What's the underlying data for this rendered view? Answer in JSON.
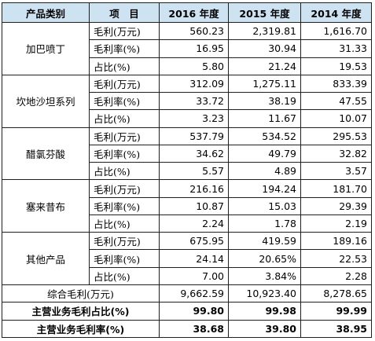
{
  "header": {
    "category": "产品类别",
    "item": "项　目",
    "year2016": "2016 年度",
    "year2015": "2015 年度",
    "year2014": "2014 年度"
  },
  "metric_labels": [
    "毛利(万元)",
    "毛利率(%)",
    "占比(%)"
  ],
  "groups": [
    {
      "name": "加巴喷丁",
      "rows": [
        [
          "560.23",
          "2,319.81",
          "1,616.70"
        ],
        [
          "16.95",
          "30.94",
          "31.33"
        ],
        [
          "5.80",
          "21.24",
          "19.53"
        ]
      ]
    },
    {
      "name": "坎地沙坦系列",
      "rows": [
        [
          "312.09",
          "1,275.11",
          "833.39"
        ],
        [
          "33.72",
          "38.19",
          "47.55"
        ],
        [
          "3.23",
          "11.67",
          "10.07"
        ]
      ]
    },
    {
      "name": "醋氯芬酸",
      "rows": [
        [
          "537.79",
          "534.52",
          "295.53"
        ],
        [
          "34.62",
          "49.79",
          "32.82"
        ],
        [
          "5.57",
          "4.89",
          "3.57"
        ]
      ]
    },
    {
      "name": "塞来昔布",
      "rows": [
        [
          "216.16",
          "194.24",
          "181.70"
        ],
        [
          "10.87",
          "15.03",
          "29.39"
        ],
        [
          "2.24",
          "1.78",
          "2.19"
        ]
      ]
    },
    {
      "name": "其他产品",
      "rows": [
        [
          "675.95",
          "419.59",
          "189.16"
        ],
        [
          "24.14",
          "20.65%",
          "22.53"
        ],
        [
          "7.00",
          "3.84%",
          "2.28"
        ]
      ]
    }
  ],
  "summary": [
    {
      "label": "综合毛利(万元)",
      "values": [
        "9,662.59",
        "10,923.40",
        "8,278.65"
      ],
      "bold": false
    },
    {
      "label": "主营业务毛利占比(%)",
      "values": [
        "99.80",
        "99.98",
        "99.99"
      ],
      "bold": true
    },
    {
      "label": "主营业务毛利率(%)",
      "values": [
        "38.68",
        "39.80",
        "38.95"
      ],
      "bold": true
    }
  ]
}
